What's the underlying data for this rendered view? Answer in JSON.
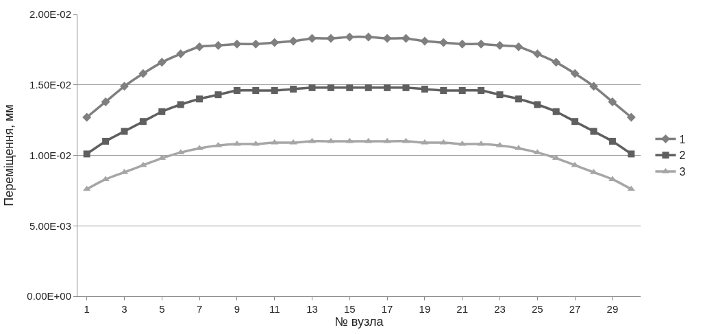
{
  "chart_data": {
    "type": "line",
    "xlabel": "№ вузла",
    "ylabel": "Переміщення, мм",
    "x": [
      1,
      2,
      3,
      4,
      5,
      6,
      7,
      8,
      9,
      10,
      11,
      12,
      13,
      14,
      15,
      16,
      17,
      18,
      19,
      20,
      21,
      22,
      23,
      24,
      25,
      26,
      27,
      28,
      29,
      30
    ],
    "xlim": [
      0.5,
      30.5
    ],
    "xticks": [
      1,
      3,
      5,
      7,
      9,
      11,
      13,
      15,
      17,
      19,
      21,
      23,
      25,
      27,
      29
    ],
    "ylim": [
      0,
      0.02
    ],
    "yticks": [
      {
        "value": 0,
        "label": "0.00E+00"
      },
      {
        "value": 0.005,
        "label": "5.00E-03"
      },
      {
        "value": 0.01,
        "label": "1.00E-02"
      },
      {
        "value": 0.015,
        "label": "1.50E-02"
      },
      {
        "value": 0.02,
        "label": "2.00E-02"
      }
    ],
    "grid": "y",
    "legend": "right",
    "series": [
      {
        "name": "1",
        "color": "#7f7f7f",
        "marker": "diamond",
        "values": [
          0.0127,
          0.0138,
          0.0149,
          0.0158,
          0.0166,
          0.0172,
          0.0177,
          0.0178,
          0.0179,
          0.0179,
          0.018,
          0.0181,
          0.0183,
          0.0183,
          0.0184,
          0.0184,
          0.0183,
          0.0183,
          0.0181,
          0.018,
          0.0179,
          0.0179,
          0.0178,
          0.0177,
          0.0172,
          0.0166,
          0.0158,
          0.0149,
          0.0138,
          0.0127
        ]
      },
      {
        "name": "2",
        "color": "#5f5f5f",
        "marker": "square",
        "values": [
          0.0101,
          0.011,
          0.0117,
          0.0124,
          0.0131,
          0.0136,
          0.014,
          0.0143,
          0.0146,
          0.0146,
          0.0146,
          0.0147,
          0.0148,
          0.0148,
          0.0148,
          0.0148,
          0.0148,
          0.0148,
          0.0147,
          0.0146,
          0.0146,
          0.0146,
          0.0143,
          0.014,
          0.0136,
          0.0131,
          0.0124,
          0.0117,
          0.011,
          0.0101
        ]
      },
      {
        "name": "3",
        "color": "#a6a6a6",
        "marker": "triangle",
        "values": [
          0.0076,
          0.0083,
          0.0088,
          0.0093,
          0.0098,
          0.0102,
          0.0105,
          0.0107,
          0.0108,
          0.0108,
          0.0109,
          0.0109,
          0.011,
          0.011,
          0.011,
          0.011,
          0.011,
          0.011,
          0.0109,
          0.0109,
          0.0108,
          0.0108,
          0.0107,
          0.0105,
          0.0102,
          0.0098,
          0.0093,
          0.0088,
          0.0083,
          0.0076
        ]
      }
    ]
  }
}
